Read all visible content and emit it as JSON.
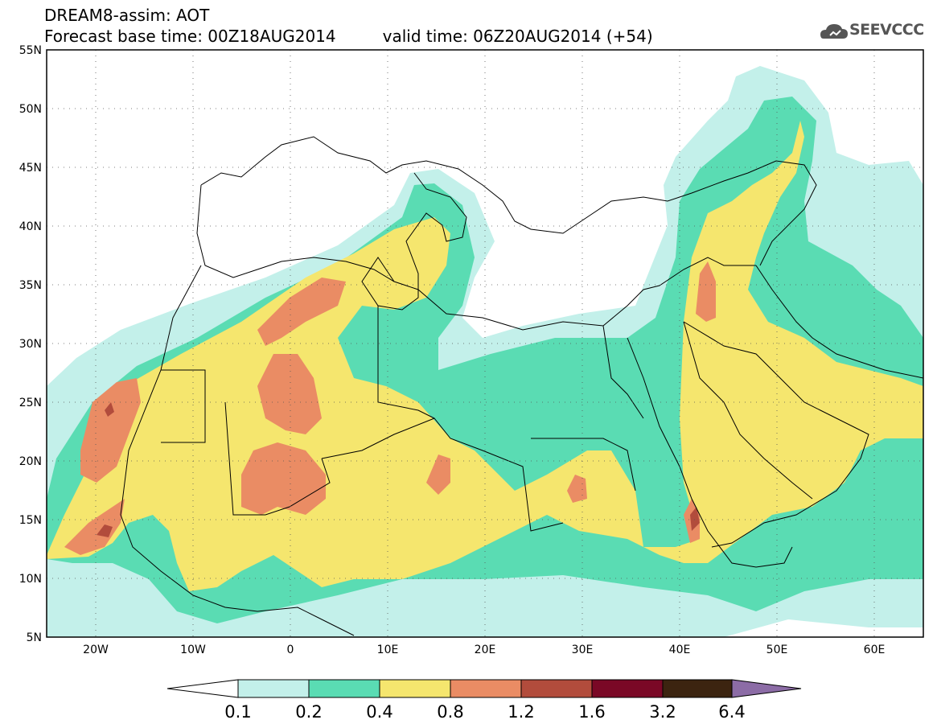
{
  "title": {
    "line1": "DREAM8-assim: AOT",
    "base_time": "Forecast base time: 00Z18AUG2014",
    "valid_time": "valid time: 06Z20AUG2014 (+54)"
  },
  "logo": {
    "text": "SEEVCCC",
    "icon": "cloud-logo-icon"
  },
  "map": {
    "lon_range": [
      -25,
      65
    ],
    "lat_range": [
      5,
      55
    ],
    "lat_labels": [
      "55N",
      "50N",
      "45N",
      "40N",
      "35N",
      "30N",
      "25N",
      "20N",
      "15N",
      "10N",
      "5N"
    ],
    "lon_labels": [
      "20W",
      "10W",
      "0",
      "10E",
      "20E",
      "30E",
      "40E",
      "50E",
      "60E"
    ]
  },
  "colorbar": {
    "labels": [
      "0.1",
      "0.2",
      "0.4",
      "0.8",
      "1.2",
      "1.6",
      "3.2",
      "6.4"
    ],
    "colors": [
      "#c3f0ea",
      "#5adcb3",
      "#f5e66e",
      "#ea8c64",
      "#b24c3c",
      "#7a0826",
      "#3c2410",
      "#8c6ca6"
    ]
  },
  "palette": {
    "low": "#c3f0ea",
    "mid": "#5adcb3",
    "high": "#f5e66e",
    "very_high": "#ea8c64",
    "extreme": "#b24c3c"
  }
}
